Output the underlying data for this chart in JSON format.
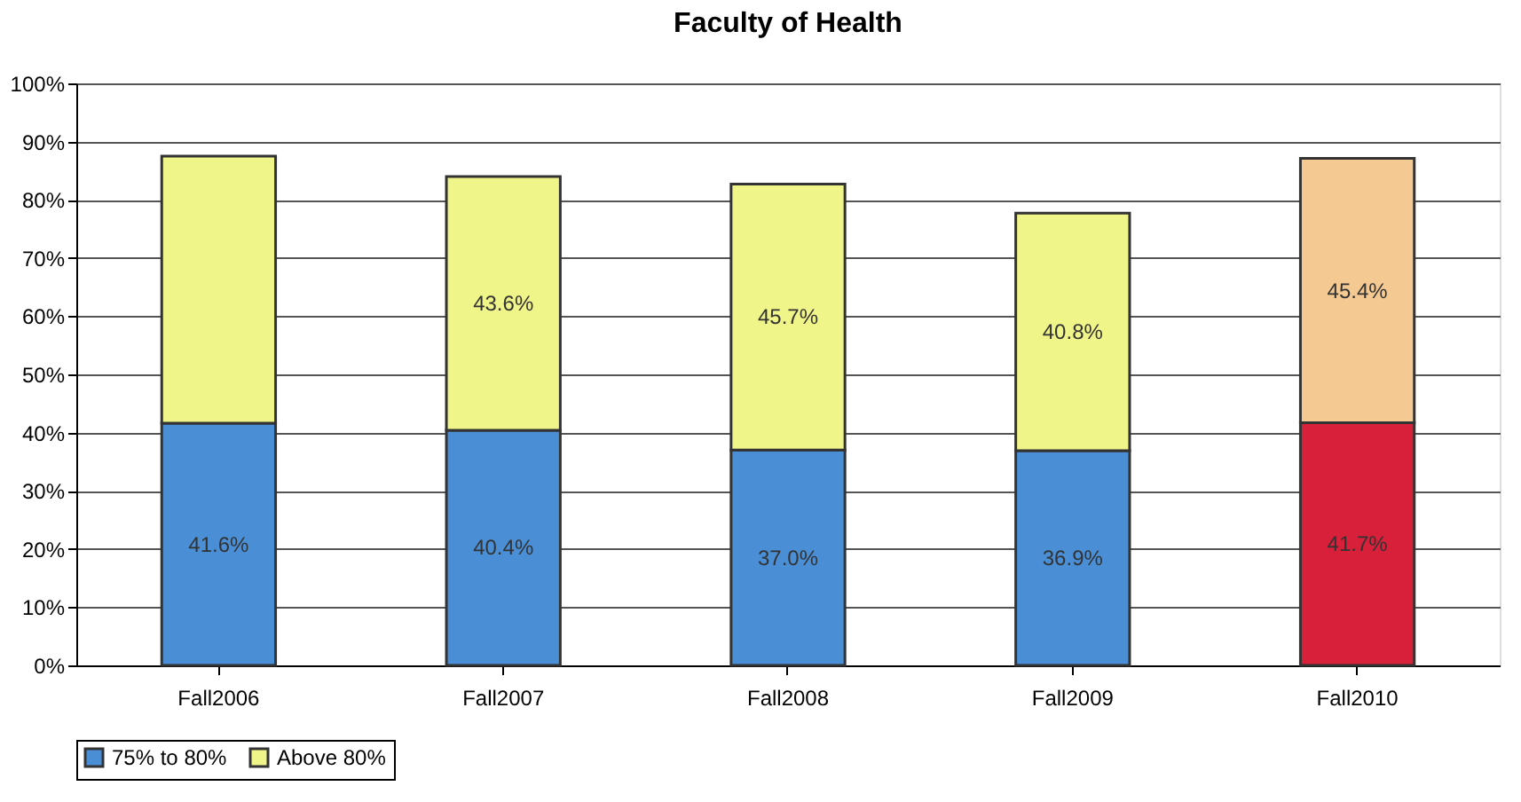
{
  "chart_data": {
    "type": "bar",
    "title": "Faculty of Health",
    "stacked": true,
    "categories": [
      "Fall2006",
      "Fall2007",
      "Fall2008",
      "Fall2009",
      "Fall2010"
    ],
    "series": [
      {
        "name": "75% to 80%",
        "color": "#4a8fd6",
        "colors": [
          "#4a8fd6",
          "#4a8fd6",
          "#4a8fd6",
          "#4a8fd6",
          "#d8203a"
        ],
        "values": [
          41.6,
          40.4,
          37.0,
          36.9,
          41.7
        ],
        "value_labels": [
          "41.6%",
          "40.4%",
          "37.0%",
          "36.9%",
          "41.7%"
        ]
      },
      {
        "name": "Above 80%",
        "color": "#f0f58a",
        "colors": [
          "#f0f58a",
          "#f0f58a",
          "#f0f58a",
          "#f0f58a",
          "#f5c992"
        ],
        "values": [
          45.9,
          43.6,
          45.7,
          40.8,
          45.4
        ],
        "value_labels": [
          null,
          "43.6%",
          "45.7%",
          "40.8%",
          "45.4%"
        ]
      }
    ],
    "ylim": [
      0,
      100
    ],
    "yticks": [
      {
        "value": 0,
        "label": "0%"
      },
      {
        "value": 10,
        "label": "10%"
      },
      {
        "value": 20,
        "label": "20%"
      },
      {
        "value": 30,
        "label": "30%"
      },
      {
        "value": 40,
        "label": "40%"
      },
      {
        "value": 50,
        "label": "50%"
      },
      {
        "value": 60,
        "label": "60%"
      },
      {
        "value": 70,
        "label": "70%"
      },
      {
        "value": 80,
        "label": "80%"
      },
      {
        "value": 90,
        "label": "90%"
      },
      {
        "value": 100,
        "label": "100%"
      }
    ],
    "grid": "y",
    "legend": "bottom"
  }
}
